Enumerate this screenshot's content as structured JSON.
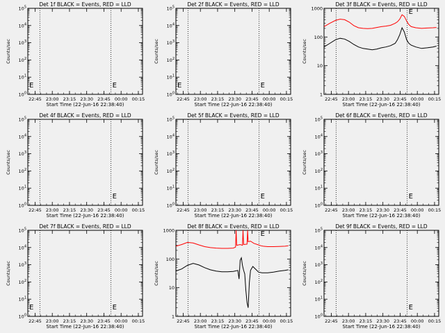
{
  "figure": {
    "xlabel": "Start Time (22-Jun-16 22:38:40)",
    "ylabel": "Counts/sec",
    "x_tick_labels": [
      "22:45",
      "23:00",
      "23:15",
      "23:30",
      "23:45",
      "00:00",
      "00:15"
    ],
    "marker": "E"
  },
  "chart_data": [
    {
      "type": "line",
      "title": "Det 1f BLACK = Events, RED = LLD",
      "xlabel": "Start Time (22-Jun-16 22:38:40)",
      "ylabel": "Counts/sec",
      "xlim_minutes": [
        0,
        100
      ],
      "ylim": [
        1,
        100000
      ],
      "log_y": true,
      "y_tick_labels": [
        "10^0",
        "10^1",
        "10^2",
        "10^3",
        "10^4",
        "10^5"
      ],
      "vlines_minutes": [
        10.5,
        72.5
      ],
      "markers": [
        "E",
        "E"
      ],
      "series": []
    },
    {
      "type": "line",
      "title": "Det 2f BLACK = Events, RED = LLD",
      "xlabel": "Start Time (22-Jun-16 22:38:40)",
      "ylabel": "Counts/sec",
      "xlim_minutes": [
        0,
        100
      ],
      "ylim": [
        1,
        100000
      ],
      "log_y": true,
      "y_tick_labels": [
        "10^0",
        "10^1",
        "10^2",
        "10^3",
        "10^4",
        "10^5"
      ],
      "vlines_minutes": [
        10.5,
        72.5
      ],
      "markers": [
        "E",
        "E"
      ],
      "series": []
    },
    {
      "type": "line",
      "title": "Det 3f BLACK = Events, RED = LLD",
      "xlabel": "Start Time (22-Jun-16 22:38:40)",
      "ylabel": "Counts/sec",
      "xlim_minutes": [
        0,
        100
      ],
      "ylim": [
        1,
        1000
      ],
      "log_y": true,
      "y_tick_labels": [
        "1",
        "10",
        "100",
        "1000"
      ],
      "vlines_minutes": [
        10.5,
        72.5
      ],
      "markers": [
        "E"
      ],
      "series": [
        {
          "color": "#ff0000",
          "x": [
            0,
            5,
            10,
            14,
            18,
            22,
            26,
            30,
            34,
            38,
            42,
            46,
            50,
            54,
            58,
            62,
            64,
            66,
            68,
            70,
            72,
            74,
            76,
            80,
            85,
            90,
            95,
            98
          ],
          "y": [
            230,
            300,
            380,
            420,
            400,
            330,
            250,
            210,
            200,
            195,
            200,
            215,
            230,
            240,
            255,
            300,
            340,
            420,
            600,
            520,
            360,
            270,
            230,
            210,
            200,
            205,
            210,
            215
          ]
        },
        {
          "color": "#000000",
          "x": [
            0,
            5,
            10,
            14,
            18,
            22,
            26,
            30,
            34,
            38,
            42,
            46,
            50,
            54,
            58,
            62,
            64,
            66,
            68,
            70,
            72,
            74,
            76,
            80,
            85,
            90,
            95,
            98
          ],
          "y": [
            45,
            60,
            80,
            90,
            85,
            70,
            55,
            45,
            40,
            38,
            36,
            38,
            42,
            45,
            50,
            60,
            80,
            120,
            210,
            150,
            80,
            60,
            52,
            45,
            40,
            42,
            45,
            48
          ]
        }
      ]
    },
    {
      "type": "line",
      "title": "Det 4f BLACK = Events, RED = LLD",
      "xlabel": "Start Time (22-Jun-16 22:38:40)",
      "ylabel": "Counts/sec",
      "xlim_minutes": [
        0,
        100
      ],
      "ylim": [
        1,
        100000
      ],
      "log_y": true,
      "y_tick_labels": [
        "10^0",
        "10^1",
        "10^2",
        "10^3",
        "10^4",
        "10^5"
      ],
      "vlines_minutes": [
        10.5,
        72.5
      ],
      "markers": [
        "E"
      ],
      "series": []
    },
    {
      "type": "line",
      "title": "Det 5f BLACK = Events, RED = LLD",
      "xlabel": "Start Time (22-Jun-16 22:38:40)",
      "ylabel": "Counts/sec",
      "xlim_minutes": [
        0,
        100
      ],
      "ylim": [
        1,
        100000
      ],
      "log_y": true,
      "y_tick_labels": [
        "10^0",
        "10^1",
        "10^2",
        "10^3",
        "10^4",
        "10^5"
      ],
      "vlines_minutes": [
        10.5,
        72.5
      ],
      "markers": [
        "E"
      ],
      "series": []
    },
    {
      "type": "line",
      "title": "Det 6f BLACK = Events, RED = LLD",
      "xlabel": "Start Time (22-Jun-16 22:38:40)",
      "ylabel": "Counts/sec",
      "xlim_minutes": [
        0,
        100
      ],
      "ylim": [
        1,
        100000
      ],
      "log_y": true,
      "y_tick_labels": [
        "10^0",
        "10^1",
        "10^2",
        "10^3",
        "10^4",
        "10^5"
      ],
      "vlines_minutes": [
        10.5,
        72.5
      ],
      "markers": [
        "E"
      ],
      "series": []
    },
    {
      "type": "line",
      "title": "Det 7f BLACK = Events, RED = LLD",
      "xlabel": "Start Time (22-Jun-16 22:38:40)",
      "ylabel": "Counts/sec",
      "xlim_minutes": [
        0,
        100
      ],
      "ylim": [
        1,
        100000
      ],
      "log_y": true,
      "y_tick_labels": [
        "10^0",
        "10^1",
        "10^2",
        "10^3",
        "10^4",
        "10^5"
      ],
      "vlines_minutes": [
        10.5,
        72.5
      ],
      "markers": [
        "E",
        "E"
      ],
      "series": []
    },
    {
      "type": "line",
      "title": "Det 8f BLACK = Events, RED = LLD",
      "xlabel": "Start Time (22-Jun-16 22:38:40)",
      "ylabel": "Counts/sec",
      "xlim_minutes": [
        0,
        100
      ],
      "ylim": [
        1,
        1000
      ],
      "log_y": true,
      "y_tick_labels": [
        "1",
        "10",
        "100",
        "1000"
      ],
      "vlines_minutes": [
        10.5,
        72.5
      ],
      "markers": [
        "E"
      ],
      "series": [
        {
          "color": "#ff0000",
          "x": [
            0,
            5,
            10,
            15,
            20,
            25,
            30,
            35,
            40,
            45,
            50,
            52,
            52.5,
            53,
            56,
            58,
            58.5,
            59,
            62,
            62.5,
            63,
            65,
            68,
            72,
            74,
            76,
            80,
            85,
            90,
            95,
            98
          ],
          "y": [
            280,
            320,
            380,
            360,
            310,
            270,
            250,
            240,
            235,
            235,
            240,
            260,
            1000,
            300,
            320,
            300,
            1000,
            320,
            330,
            1000,
            400,
            420,
            350,
            310,
            290,
            280,
            270,
            270,
            275,
            280,
            290
          ]
        },
        {
          "color": "#000000",
          "x": [
            0,
            5,
            10,
            15,
            20,
            25,
            30,
            35,
            40,
            45,
            50,
            54,
            55,
            56,
            57,
            58,
            59,
            60,
            61,
            62,
            63,
            64,
            65,
            67,
            70,
            72,
            75,
            80,
            85,
            90,
            95,
            98
          ],
          "y": [
            38,
            45,
            60,
            70,
            62,
            50,
            42,
            38,
            36,
            36,
            37,
            40,
            20,
            90,
            110,
            60,
            40,
            30,
            8,
            3,
            2,
            15,
            40,
            55,
            42,
            35,
            33,
            33,
            35,
            38,
            40,
            42
          ]
        }
      ]
    },
    {
      "type": "line",
      "title": "Det 9f BLACK = Events, RED = LLD",
      "xlabel": "Start Time (22-Jun-16 22:38:40)",
      "ylabel": "Counts/sec",
      "xlim_minutes": [
        0,
        100
      ],
      "ylim": [
        1,
        100000
      ],
      "log_y": true,
      "y_tick_labels": [
        "10^0",
        "10^1",
        "10^2",
        "10^3",
        "10^4",
        "10^5"
      ],
      "vlines_minutes": [
        10.5,
        72.5
      ],
      "markers": [
        "E"
      ],
      "series": []
    }
  ]
}
